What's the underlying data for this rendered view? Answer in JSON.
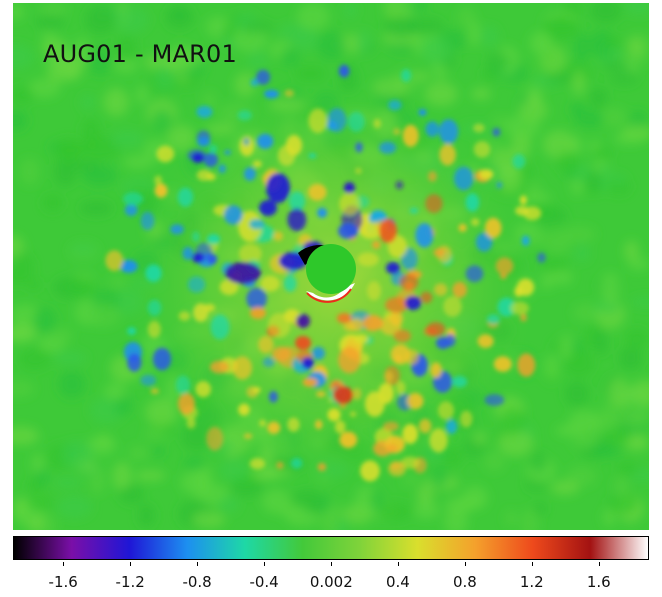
{
  "label": "AUG01 - MAR01",
  "colorbar": {
    "ticks": [
      "-1.6",
      "-1.2",
      "-0.8",
      "-0.4",
      "0.002",
      "0.4",
      "0.8",
      "1.2",
      "1.6"
    ],
    "range": [
      -1.9,
      1.9
    ],
    "colors": [
      "#000000",
      "#7a0fa8",
      "#1f16d6",
      "#1d8ff0",
      "#1ed8a6",
      "#43c93a",
      "#7fd33a",
      "#d9df2d",
      "#f4a12c",
      "#ee4a1c",
      "#a31212",
      "#ffffff"
    ]
  }
}
